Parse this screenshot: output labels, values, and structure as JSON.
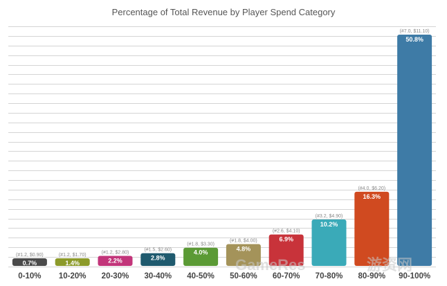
{
  "chart_data": {
    "type": "bar",
    "title": "Percentage of Total Revenue by Player Spend Category",
    "xlabel": "",
    "ylabel": "",
    "ylim": [
      0,
      52
    ],
    "grid": true,
    "categories": [
      "0-10%",
      "10-20%",
      "20-30%",
      "30-40%",
      "40-50%",
      "50-60%",
      "60-70%",
      "70-80%",
      "80-90%",
      "90-100%"
    ],
    "values": [
      0.7,
      1.4,
      2.2,
      2.8,
      4.0,
      4.8,
      6.9,
      10.2,
      16.3,
      50.8
    ],
    "value_labels": [
      "0.7%",
      "1.4%",
      "2.2%",
      "2.8%",
      "4.0%",
      "4.8%",
      "6.9%",
      "10.2%",
      "16.3%",
      "50.8%"
    ],
    "annotations": [
      "(#1.2, $0.90)",
      "(#1.2, $1.70)",
      "(#1.2, $2.80)",
      "(#1.5, $2.60)",
      "(#1.8, $3.30)",
      "(#1.8, $4.00)",
      "(#2.6, $4.10)",
      "(#3.2, $4.90)",
      "(#4.0, $6.20)",
      "(#7.0, $11.10)"
    ],
    "colors": [
      "#4a4a4a",
      "#8c9a2a",
      "#c2357a",
      "#1f5a6e",
      "#5b9a35",
      "#a4935a",
      "#c8333a",
      "#3aaab8",
      "#d04a20",
      "#3e7ba6"
    ]
  },
  "watermark": {
    "brand": "GameRes",
    "suffix": "游资网"
  }
}
